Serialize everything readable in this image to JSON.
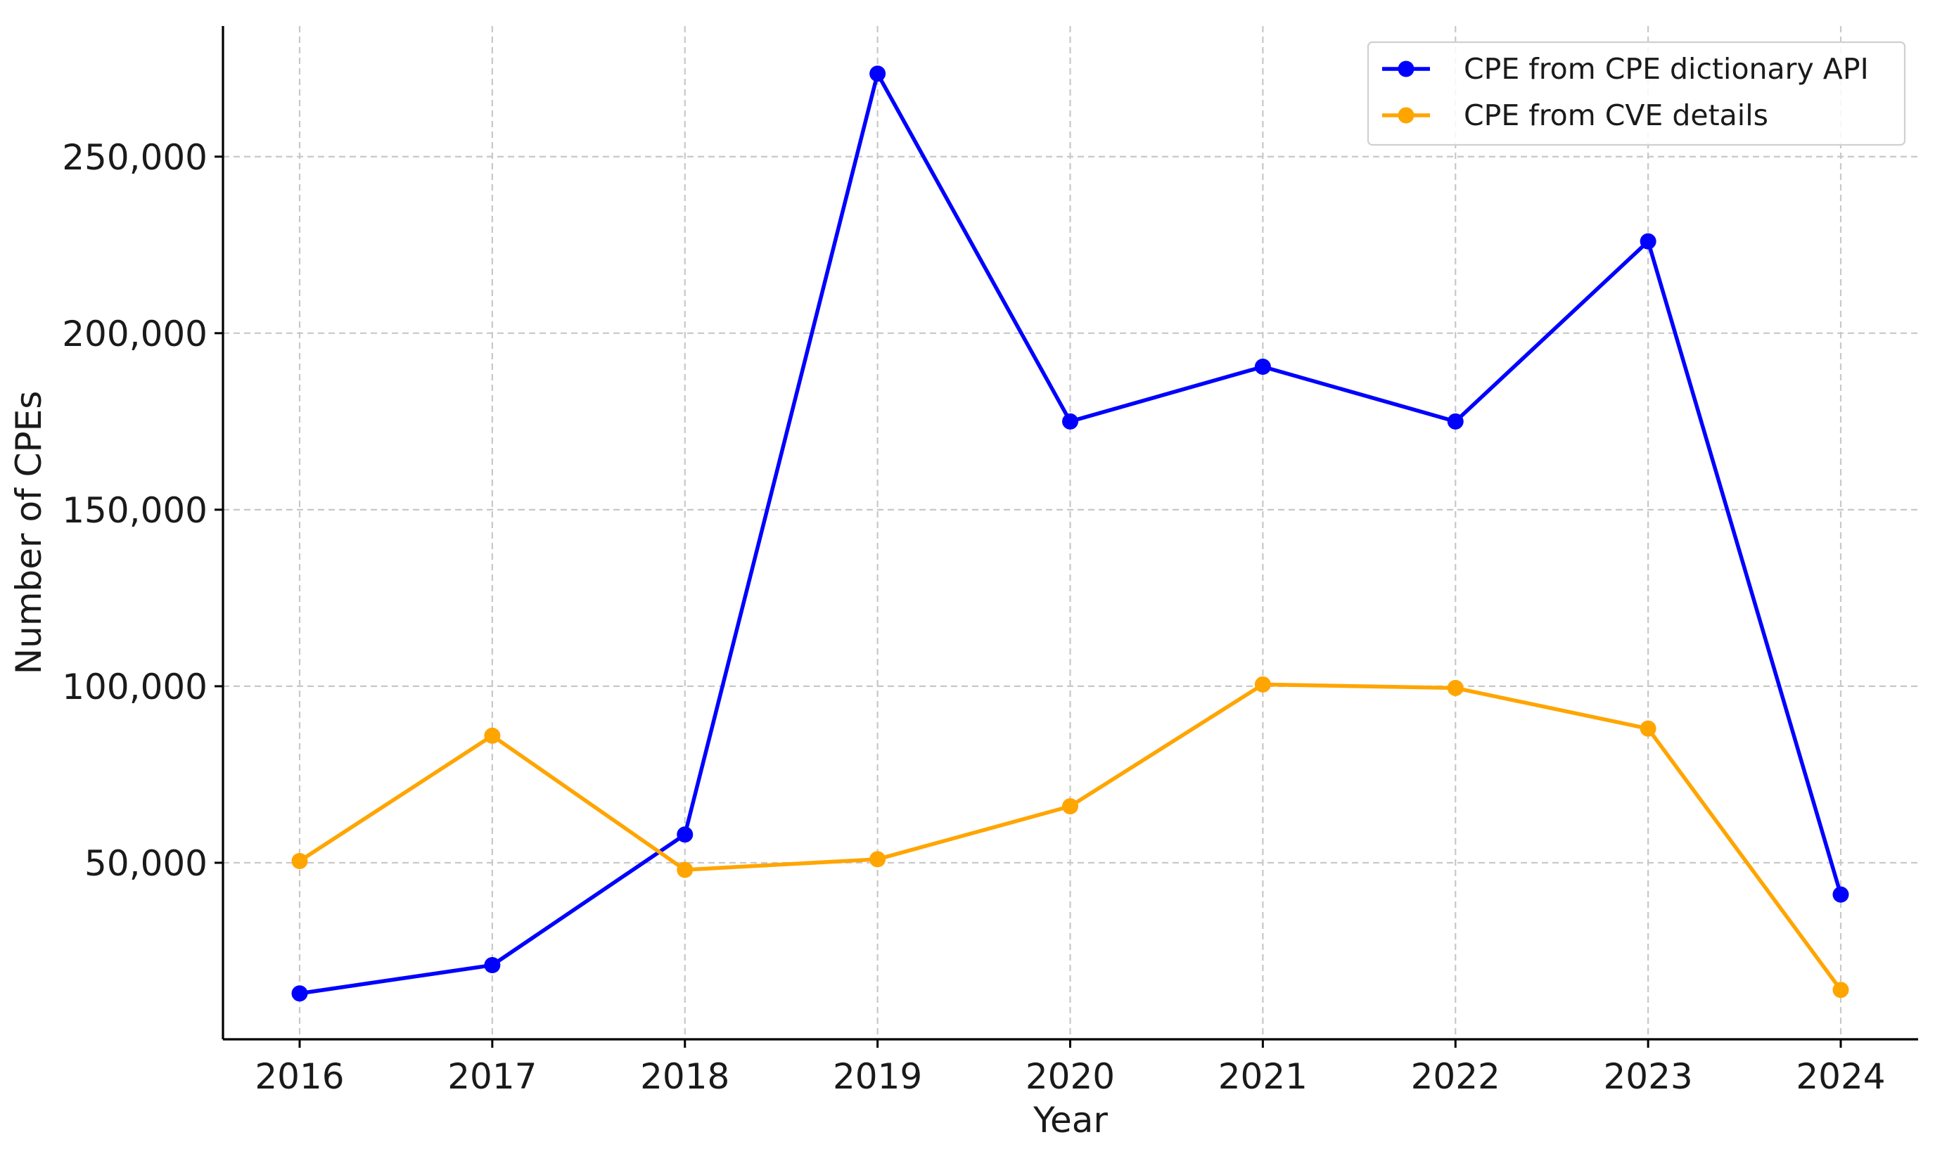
{
  "chart_data": {
    "type": "line",
    "title": "",
    "xlabel": "Year",
    "ylabel": "Number of CPEs",
    "categories": [
      "2016",
      "2017",
      "2018",
      "2019",
      "2020",
      "2021",
      "2022",
      "2023",
      "2024"
    ],
    "ylim": [
      0,
      287000
    ],
    "yticks": [
      50000,
      100000,
      150000,
      200000,
      250000
    ],
    "ytick_labels": [
      "50,000",
      "100,000",
      "150,000",
      "200,000",
      "250,000"
    ],
    "grid": true,
    "legend_position": "top-right",
    "series": [
      {
        "name": "CPE from CPE dictionary API",
        "color": "#0000ff",
        "marker": "circle",
        "values": [
          13000,
          21000,
          58000,
          273500,
          175000,
          190500,
          175000,
          226000,
          41000
        ]
      },
      {
        "name": "CPE from CVE details",
        "color": "#ffa500",
        "marker": "circle",
        "values": [
          50500,
          86000,
          48000,
          51000,
          66000,
          100500,
          99500,
          88000,
          14000
        ]
      }
    ]
  }
}
